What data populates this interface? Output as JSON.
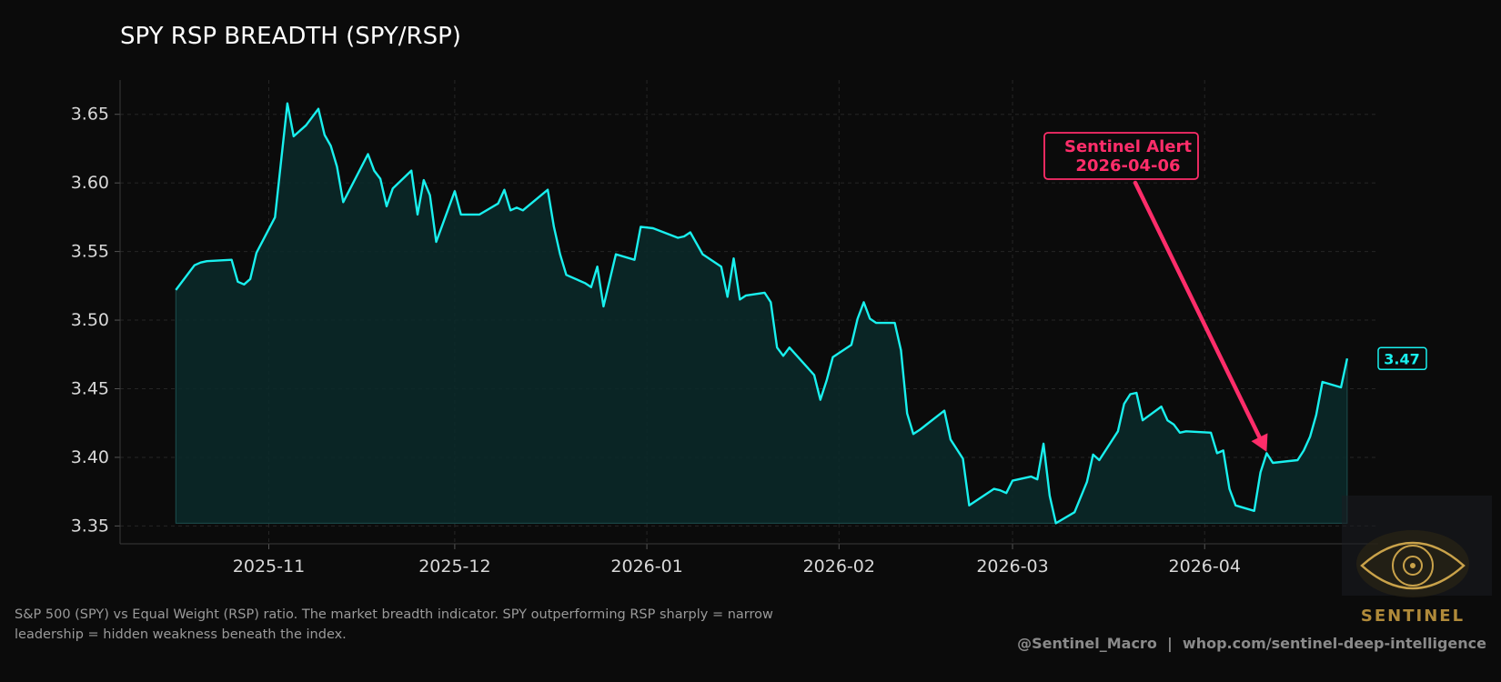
{
  "colors": {
    "background": "#0b0b0b",
    "line": "#19f0ee",
    "fill": "#0a2a2a",
    "alert": "#ff2d6a",
    "text": "#d8d8d8",
    "grid": "#262626",
    "logo_gold": "#c9a24a"
  },
  "caption": "S&P 500 (SPY) vs Equal Weight (RSP) ratio. The market breadth indicator. SPY outperforming RSP sharply = narrow leadership = hidden weakness beneath the index.",
  "credit": "@Sentinel_Macro  |  whop.com/sentinel-deep-intelligence",
  "logo": {
    "label": "SENTINEL",
    "icon": "eye-emblem-icon"
  },
  "chart_data": {
    "type": "line",
    "title": "SPY RSP BREADTH (SPY/RSP)",
    "xlabel": "",
    "ylabel": "",
    "x_range": [
      "2025-10-08",
      "2026-04-29"
    ],
    "ylim": [
      3.337,
      3.675
    ],
    "yticks": [
      "3.35",
      "3.40",
      "3.45",
      "3.50",
      "3.55",
      "3.60",
      "3.65"
    ],
    "xticks": [
      {
        "date": "2025-11-01",
        "label": "2025-11"
      },
      {
        "date": "2025-12-01",
        "label": "2025-12"
      },
      {
        "date": "2026-01-01",
        "label": "2026-01"
      },
      {
        "date": "2026-02-01",
        "label": "2026-02"
      },
      {
        "date": "2026-03-01",
        "label": "2026-03"
      },
      {
        "date": "2026-04-01",
        "label": "2026-04"
      }
    ],
    "grid": true,
    "fill_under": true,
    "series": [
      {
        "points": [
          [
            "2025-10-17",
            3.522
          ],
          [
            "2025-10-20",
            3.54
          ],
          [
            "2025-10-21",
            3.542
          ],
          [
            "2025-10-22",
            3.543
          ],
          [
            "2025-10-26",
            3.544
          ],
          [
            "2025-10-27",
            3.528
          ],
          [
            "2025-10-28",
            3.526
          ],
          [
            "2025-10-29",
            3.53
          ],
          [
            "2025-10-30",
            3.549
          ],
          [
            "2025-11-02",
            3.575
          ],
          [
            "2025-11-04",
            3.658
          ],
          [
            "2025-11-05",
            3.634
          ],
          [
            "2025-11-07",
            3.642
          ],
          [
            "2025-11-09",
            3.654
          ],
          [
            "2025-11-10",
            3.635
          ],
          [
            "2025-11-11",
            3.627
          ],
          [
            "2025-11-12",
            3.612
          ],
          [
            "2025-11-13",
            3.586
          ],
          [
            "2025-11-17",
            3.621
          ],
          [
            "2025-11-18",
            3.609
          ],
          [
            "2025-11-19",
            3.603
          ],
          [
            "2025-11-20",
            3.583
          ],
          [
            "2025-11-21",
            3.596
          ],
          [
            "2025-11-24",
            3.609
          ],
          [
            "2025-11-25",
            3.577
          ],
          [
            "2025-11-26",
            3.602
          ],
          [
            "2025-11-27",
            3.591
          ],
          [
            "2025-11-28",
            3.557
          ],
          [
            "2025-12-01",
            3.594
          ],
          [
            "2025-12-02",
            3.577
          ],
          [
            "2025-12-05",
            3.577
          ],
          [
            "2025-12-08",
            3.585
          ],
          [
            "2025-12-09",
            3.595
          ],
          [
            "2025-12-10",
            3.58
          ],
          [
            "2025-12-11",
            3.582
          ],
          [
            "2025-12-12",
            3.58
          ],
          [
            "2025-12-16",
            3.595
          ],
          [
            "2025-12-17",
            3.568
          ],
          [
            "2025-12-18",
            3.548
          ],
          [
            "2025-12-19",
            3.533
          ],
          [
            "2025-12-22",
            3.527
          ],
          [
            "2025-12-23",
            3.524
          ],
          [
            "2025-12-24",
            3.539
          ],
          [
            "2025-12-25",
            3.51
          ],
          [
            "2025-12-27",
            3.548
          ],
          [
            "2025-12-30",
            3.544
          ],
          [
            "2025-12-31",
            3.568
          ],
          [
            "2026-01-02",
            3.567
          ],
          [
            "2026-01-06",
            3.56
          ],
          [
            "2026-01-07",
            3.561
          ],
          [
            "2026-01-08",
            3.564
          ],
          [
            "2026-01-10",
            3.548
          ],
          [
            "2026-01-13",
            3.539
          ],
          [
            "2026-01-14",
            3.517
          ],
          [
            "2026-01-15",
            3.545
          ],
          [
            "2026-01-16",
            3.515
          ],
          [
            "2026-01-17",
            3.518
          ],
          [
            "2026-01-20",
            3.52
          ],
          [
            "2026-01-21",
            3.513
          ],
          [
            "2026-01-22",
            3.48
          ],
          [
            "2026-01-23",
            3.474
          ],
          [
            "2026-01-24",
            3.48
          ],
          [
            "2026-01-28",
            3.46
          ],
          [
            "2026-01-29",
            3.442
          ],
          [
            "2026-01-30",
            3.456
          ],
          [
            "2026-01-31",
            3.473
          ],
          [
            "2026-02-03",
            3.482
          ],
          [
            "2026-02-04",
            3.501
          ],
          [
            "2026-02-05",
            3.513
          ],
          [
            "2026-02-06",
            3.501
          ],
          [
            "2026-02-07",
            3.498
          ],
          [
            "2026-02-10",
            3.498
          ],
          [
            "2026-02-11",
            3.478
          ],
          [
            "2026-02-12",
            3.432
          ],
          [
            "2026-02-13",
            3.417
          ],
          [
            "2026-02-14",
            3.42
          ],
          [
            "2026-02-18",
            3.434
          ],
          [
            "2026-02-19",
            3.413
          ],
          [
            "2026-02-21",
            3.399
          ],
          [
            "2026-02-22",
            3.365
          ],
          [
            "2026-02-26",
            3.377
          ],
          [
            "2026-02-27",
            3.376
          ],
          [
            "2026-02-28",
            3.374
          ],
          [
            "2026-03-01",
            3.383
          ],
          [
            "2026-03-04",
            3.386
          ],
          [
            "2026-03-05",
            3.384
          ],
          [
            "2026-03-06",
            3.41
          ],
          [
            "2026-03-07",
            3.372
          ],
          [
            "2026-03-08",
            3.352
          ],
          [
            "2026-03-11",
            3.36
          ],
          [
            "2026-03-13",
            3.382
          ],
          [
            "2026-03-14",
            3.402
          ],
          [
            "2026-03-15",
            3.398
          ],
          [
            "2026-03-18",
            3.419
          ],
          [
            "2026-03-19",
            3.439
          ],
          [
            "2026-03-20",
            3.446
          ],
          [
            "2026-03-21",
            3.447
          ],
          [
            "2026-03-22",
            3.427
          ],
          [
            "2026-03-25",
            3.437
          ],
          [
            "2026-03-26",
            3.427
          ],
          [
            "2026-03-27",
            3.424
          ],
          [
            "2026-03-28",
            3.418
          ],
          [
            "2026-03-29",
            3.419
          ],
          [
            "2026-04-02",
            3.418
          ],
          [
            "2026-04-03",
            3.403
          ],
          [
            "2026-04-04",
            3.405
          ],
          [
            "2026-04-05",
            3.377
          ],
          [
            "2026-04-06",
            3.365
          ],
          [
            "2026-04-09",
            3.361
          ],
          [
            "2026-04-10",
            3.389
          ],
          [
            "2026-04-11",
            3.403
          ],
          [
            "2026-04-12",
            3.396
          ],
          [
            "2026-04-16",
            3.398
          ],
          [
            "2026-04-17",
            3.405
          ],
          [
            "2026-04-18",
            3.415
          ],
          [
            "2026-04-19",
            3.431
          ],
          [
            "2026-04-20",
            3.455
          ],
          [
            "2026-04-23",
            3.451
          ],
          [
            "2026-04-24",
            3.472
          ]
        ]
      }
    ],
    "last_value_label": "3.47",
    "annotation": {
      "text_line1": "Sentinel Alert",
      "text_line2": "2026-04-06",
      "arrow_to": [
        "2026-04-11",
        3.404
      ]
    }
  }
}
